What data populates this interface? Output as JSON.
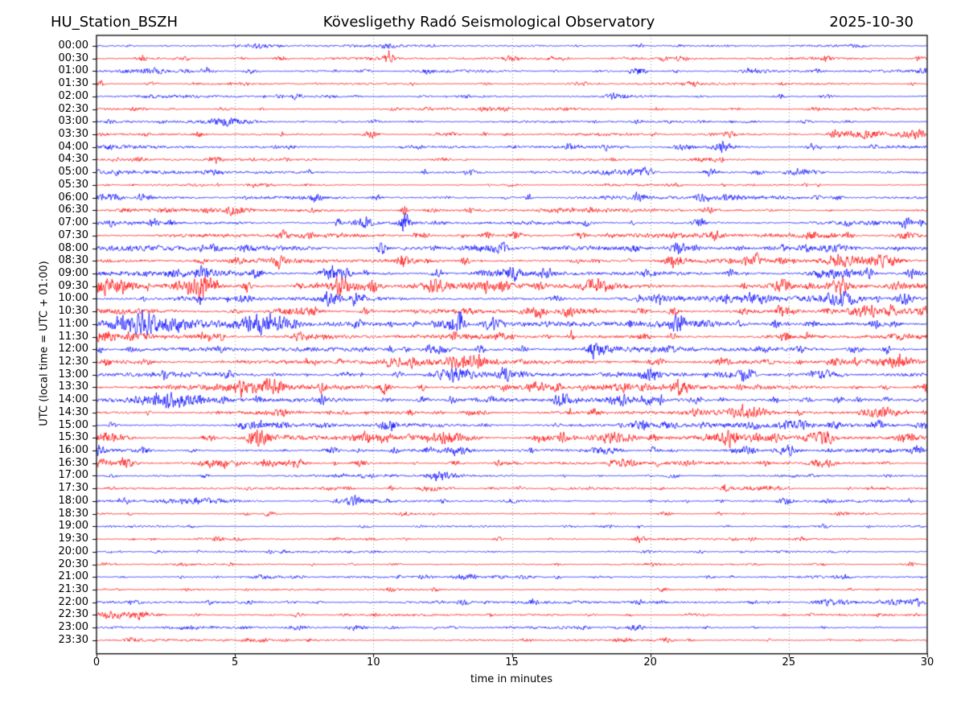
{
  "header": {
    "station": "HU_Station_BSZH",
    "observatory": "Kövesligethy Radó Seismological Observatory",
    "date": "2025-10-30"
  },
  "axes": {
    "y_label": "UTC (local time = UTC + 01:00)",
    "x_label": "time in minutes",
    "x_ticks": [
      "0",
      "5",
      "10",
      "15",
      "20",
      "25",
      "30"
    ],
    "x_range": [
      0,
      30
    ],
    "grid_minutes": [
      5,
      10,
      15,
      20,
      25
    ],
    "grid_style": "dotted"
  },
  "colors": {
    "blue": "#0000ff",
    "red": "#ff0000",
    "grid": "#999999",
    "axis": "#000000",
    "background": "#ffffff"
  },
  "chart_data": {
    "type": "line",
    "description": "24-hour helicorder dayplot, 48 half-hour traces of 30 minutes each, alternating blue/red",
    "minutes_per_row": 30,
    "rows": [
      {
        "time": "00:00",
        "color": "blue",
        "amp": 1.3,
        "events": [
          {
            "m": 5.9,
            "a": 2.2,
            "w": 0.3
          }
        ]
      },
      {
        "time": "00:30",
        "color": "red",
        "amp": 1.3,
        "events": [
          {
            "m": 10.55,
            "a": 7.0,
            "w": 0.12
          }
        ]
      },
      {
        "time": "01:00",
        "color": "blue",
        "amp": 1.5,
        "events": [
          {
            "m": 2.0,
            "a": 2.2,
            "w": 0.4
          },
          {
            "m": 23.7,
            "a": 2.5,
            "w": 0.3
          }
        ]
      },
      {
        "time": "01:30",
        "color": "red",
        "amp": 1.2,
        "events": [
          {
            "m": 0.15,
            "a": 3.0,
            "w": 0.1
          }
        ]
      },
      {
        "time": "02:00",
        "color": "blue",
        "amp": 1.2,
        "events": []
      },
      {
        "time": "02:30",
        "color": "red",
        "amp": 1.2,
        "events": []
      },
      {
        "time": "03:00",
        "color": "blue",
        "amp": 1.2,
        "events": [
          {
            "m": 4.7,
            "a": 2.6,
            "w": 0.5
          }
        ]
      },
      {
        "time": "03:30",
        "color": "red",
        "amp": 1.3,
        "events": [
          {
            "m": 27.6,
            "a": 3.5,
            "w": 0.8
          },
          {
            "m": 29.5,
            "a": 3.5,
            "w": 0.3
          }
        ]
      },
      {
        "time": "04:00",
        "color": "blue",
        "amp": 1.7,
        "events": [
          {
            "m": 21.2,
            "a": 2.8,
            "w": 0.3
          },
          {
            "m": 22.6,
            "a": 2.6,
            "w": 0.4
          }
        ]
      },
      {
        "time": "04:30",
        "color": "red",
        "amp": 1.2,
        "events": [
          {
            "m": 4.3,
            "a": 3.5,
            "w": 0.15
          }
        ]
      },
      {
        "time": "05:00",
        "color": "blue",
        "amp": 1.7,
        "events": [
          {
            "m": 19.8,
            "a": 5.0,
            "w": 0.2
          },
          {
            "m": 25.6,
            "a": 2.5,
            "w": 0.4
          }
        ]
      },
      {
        "time": "05:30",
        "color": "red",
        "amp": 1.1,
        "events": []
      },
      {
        "time": "06:00",
        "color": "blue",
        "amp": 2.0,
        "events": [
          {
            "m": 0.4,
            "a": 3.0,
            "w": 0.3
          },
          {
            "m": 19.6,
            "a": 4.0,
            "w": 0.15
          },
          {
            "m": 21.9,
            "a": 3.0,
            "w": 0.2
          }
        ]
      },
      {
        "time": "06:30",
        "color": "red",
        "amp": 1.8,
        "events": [
          {
            "m": 4.9,
            "a": 2.6,
            "w": 0.3
          },
          {
            "m": 11.1,
            "a": 4.0,
            "w": 0.1
          }
        ]
      },
      {
        "time": "07:00",
        "color": "blue",
        "amp": 2.2,
        "events": [
          {
            "m": 9.6,
            "a": 3.5,
            "w": 0.3
          },
          {
            "m": 11.15,
            "a": 8.0,
            "w": 0.15
          }
        ]
      },
      {
        "time": "07:30",
        "color": "red",
        "amp": 2.4,
        "events": [
          {
            "m": 29.3,
            "a": 3.5,
            "w": 0.3
          }
        ]
      },
      {
        "time": "08:00",
        "color": "blue",
        "amp": 2.6,
        "events": [
          {
            "m": 14.2,
            "a": 3.5,
            "w": 0.4
          },
          {
            "m": 26.6,
            "a": 3.5,
            "w": 0.5
          }
        ]
      },
      {
        "time": "08:30",
        "color": "red",
        "amp": 2.6,
        "events": [
          {
            "m": 20.9,
            "a": 4.0,
            "w": 0.3
          },
          {
            "m": 26.9,
            "a": 4.5,
            "w": 0.5
          },
          {
            "m": 28.4,
            "a": 4.5,
            "w": 0.4
          }
        ]
      },
      {
        "time": "09:00",
        "color": "blue",
        "amp": 2.8,
        "events": [
          {
            "m": 8.9,
            "a": 4.5,
            "w": 0.2
          },
          {
            "m": 14.9,
            "a": 4.0,
            "w": 0.3
          },
          {
            "m": 27.2,
            "a": 3.5,
            "w": 0.4
          }
        ]
      },
      {
        "time": "09:30",
        "color": "red",
        "amp": 3.0,
        "events": [
          {
            "m": 0.3,
            "a": 6.5,
            "w": 0.3
          },
          {
            "m": 1.0,
            "a": 5.5,
            "w": 0.3
          },
          {
            "m": 3.6,
            "a": 6.5,
            "w": 0.5
          },
          {
            "m": 8.9,
            "a": 5.5,
            "w": 0.4
          },
          {
            "m": 12.2,
            "a": 5.5,
            "w": 0.3
          },
          {
            "m": 18.0,
            "a": 5.5,
            "w": 0.4
          },
          {
            "m": 26.9,
            "a": 4.5,
            "w": 0.3
          }
        ]
      },
      {
        "time": "10:00",
        "color": "blue",
        "amp": 2.8,
        "events": [
          {
            "m": 26.9,
            "a": 5.5,
            "w": 0.5
          },
          {
            "m": 29.2,
            "a": 3.5,
            "w": 0.3
          }
        ]
      },
      {
        "time": "10:30",
        "color": "red",
        "amp": 2.8,
        "events": [
          {
            "m": 7.5,
            "a": 3.5,
            "w": 0.4
          },
          {
            "m": 15.8,
            "a": 3.5,
            "w": 0.3
          },
          {
            "m": 27.8,
            "a": 4.0,
            "w": 0.4
          }
        ]
      },
      {
        "time": "11:00",
        "color": "blue",
        "amp": 3.0,
        "events": [
          {
            "m": 1.2,
            "a": 6.5,
            "w": 0.6
          },
          {
            "m": 2.3,
            "a": 7.5,
            "w": 0.8
          },
          {
            "m": 5.6,
            "a": 5.5,
            "w": 0.4
          },
          {
            "m": 6.6,
            "a": 6.5,
            "w": 0.5
          },
          {
            "m": 12.9,
            "a": 5.5,
            "w": 0.3
          },
          {
            "m": 14.3,
            "a": 5.5,
            "w": 0.25
          },
          {
            "m": 21.0,
            "a": 6.5,
            "w": 0.2
          }
        ]
      },
      {
        "time": "11:30",
        "color": "red",
        "amp": 2.7,
        "events": [
          {
            "m": 0.3,
            "a": 4.5,
            "w": 0.3
          },
          {
            "m": 4.0,
            "a": 3.5,
            "w": 0.3
          }
        ]
      },
      {
        "time": "12:00",
        "color": "blue",
        "amp": 2.5,
        "events": [
          {
            "m": 12.2,
            "a": 4.5,
            "w": 0.25
          },
          {
            "m": 18.1,
            "a": 4.5,
            "w": 0.3
          }
        ]
      },
      {
        "time": "12:30",
        "color": "red",
        "amp": 2.7,
        "events": [
          {
            "m": 13.5,
            "a": 3.5,
            "w": 0.4
          },
          {
            "m": 29.0,
            "a": 3.5,
            "w": 0.4
          }
        ]
      },
      {
        "time": "13:00",
        "color": "blue",
        "amp": 2.7,
        "events": [
          {
            "m": 12.9,
            "a": 6.5,
            "w": 0.5
          },
          {
            "m": 26.3,
            "a": 3.5,
            "w": 0.4
          }
        ]
      },
      {
        "time": "13:30",
        "color": "red",
        "amp": 2.8,
        "events": [
          {
            "m": 5.3,
            "a": 4.5,
            "w": 0.5
          },
          {
            "m": 6.4,
            "a": 4.5,
            "w": 0.4
          },
          {
            "m": 15.9,
            "a": 3.5,
            "w": 0.3
          },
          {
            "m": 21.1,
            "a": 5.5,
            "w": 0.2
          }
        ]
      },
      {
        "time": "14:00",
        "color": "blue",
        "amp": 2.7,
        "events": [
          {
            "m": 2.6,
            "a": 4.5,
            "w": 0.8
          },
          {
            "m": 16.9,
            "a": 3.5,
            "w": 0.3
          }
        ]
      },
      {
        "time": "14:30",
        "color": "red",
        "amp": 2.3,
        "events": [
          {
            "m": 23.6,
            "a": 3.5,
            "w": 0.5
          },
          {
            "m": 28.4,
            "a": 4.5,
            "w": 0.4
          }
        ]
      },
      {
        "time": "15:00",
        "color": "blue",
        "amp": 2.2,
        "events": [
          {
            "m": 5.3,
            "a": 3.5,
            "w": 0.15
          },
          {
            "m": 6.0,
            "a": 3.5,
            "w": 0.15
          },
          {
            "m": 19.6,
            "a": 3.5,
            "w": 0.3
          },
          {
            "m": 25.3,
            "a": 4.0,
            "w": 0.4
          },
          {
            "m": 29.9,
            "a": 4.5,
            "w": 0.2
          }
        ]
      },
      {
        "time": "15:30",
        "color": "red",
        "amp": 2.5,
        "events": [
          {
            "m": 0.3,
            "a": 4.5,
            "w": 0.3
          },
          {
            "m": 5.9,
            "a": 4.5,
            "w": 0.3
          },
          {
            "m": 9.8,
            "a": 4.5,
            "w": 0.4
          },
          {
            "m": 12.6,
            "a": 4.5,
            "w": 0.6
          },
          {
            "m": 16.1,
            "a": 3.5,
            "w": 0.3
          },
          {
            "m": 18.7,
            "a": 4.5,
            "w": 0.4
          },
          {
            "m": 22.5,
            "a": 3.5,
            "w": 0.4
          },
          {
            "m": 26.1,
            "a": 4.5,
            "w": 0.4
          },
          {
            "m": 29.3,
            "a": 3.5,
            "w": 0.3
          }
        ]
      },
      {
        "time": "16:00",
        "color": "blue",
        "amp": 1.9,
        "events": [
          {
            "m": 13.0,
            "a": 3.5,
            "w": 0.3
          },
          {
            "m": 18.4,
            "a": 3.5,
            "w": 0.4
          },
          {
            "m": 23.4,
            "a": 4.5,
            "w": 0.3
          },
          {
            "m": 24.9,
            "a": 3.5,
            "w": 0.3
          },
          {
            "m": 29.7,
            "a": 3.5,
            "w": 0.2
          }
        ]
      },
      {
        "time": "16:30",
        "color": "red",
        "amp": 1.8,
        "events": [
          {
            "m": 0.2,
            "a": 4.5,
            "w": 0.2
          },
          {
            "m": 4.1,
            "a": 2.6,
            "w": 0.3
          },
          {
            "m": 7.2,
            "a": 3.5,
            "w": 0.3
          },
          {
            "m": 19.1,
            "a": 3.0,
            "w": 0.3
          },
          {
            "m": 26.2,
            "a": 4.5,
            "w": 0.3
          }
        ]
      },
      {
        "time": "17:00",
        "color": "blue",
        "amp": 1.3,
        "events": [
          {
            "m": 12.3,
            "a": 2.6,
            "w": 0.3
          }
        ]
      },
      {
        "time": "17:30",
        "color": "red",
        "amp": 1.3,
        "events": [
          {
            "m": 12.1,
            "a": 2.2,
            "w": 0.3
          },
          {
            "m": 24.3,
            "a": 3.0,
            "w": 0.3
          }
        ]
      },
      {
        "time": "18:00",
        "color": "blue",
        "amp": 1.4,
        "events": [
          {
            "m": 3.5,
            "a": 2.6,
            "w": 1.0
          },
          {
            "m": 9.3,
            "a": 3.0,
            "w": 0.3
          },
          {
            "m": 24.9,
            "a": 2.6,
            "w": 0.2
          }
        ]
      },
      {
        "time": "18:30",
        "color": "red",
        "amp": 1.0,
        "events": []
      },
      {
        "time": "19:00",
        "color": "blue",
        "amp": 1.0,
        "events": []
      },
      {
        "time": "19:30",
        "color": "red",
        "amp": 1.1,
        "events": [
          {
            "m": 4.4,
            "a": 2.2,
            "w": 0.15
          },
          {
            "m": 19.6,
            "a": 2.6,
            "w": 0.15
          }
        ]
      },
      {
        "time": "20:00",
        "color": "blue",
        "amp": 1.0,
        "events": []
      },
      {
        "time": "20:30",
        "color": "red",
        "amp": 1.0,
        "events": [
          {
            "m": 29.4,
            "a": 2.2,
            "w": 0.15
          }
        ]
      },
      {
        "time": "21:00",
        "color": "blue",
        "amp": 1.1,
        "events": [
          {
            "m": 6.0,
            "a": 2.2,
            "w": 0.3
          },
          {
            "m": 13.2,
            "a": 1.8,
            "w": 0.2
          },
          {
            "m": 15.6,
            "a": 1.8,
            "w": 0.2
          }
        ]
      },
      {
        "time": "21:30",
        "color": "red",
        "amp": 0.9,
        "events": []
      },
      {
        "time": "22:00",
        "color": "blue",
        "amp": 1.4,
        "events": [
          {
            "m": 26.6,
            "a": 2.6,
            "w": 0.5
          },
          {
            "m": 28.9,
            "a": 2.6,
            "w": 0.5
          },
          {
            "m": 29.7,
            "a": 2.6,
            "w": 0.2
          }
        ]
      },
      {
        "time": "22:30",
        "color": "red",
        "amp": 1.1,
        "events": [
          {
            "m": 0.5,
            "a": 2.6,
            "w": 0.4
          },
          {
            "m": 1.6,
            "a": 3.2,
            "w": 0.4
          }
        ]
      },
      {
        "time": "23:00",
        "color": "blue",
        "amp": 1.1,
        "events": [
          {
            "m": 7.3,
            "a": 2.2,
            "w": 0.3
          },
          {
            "m": 9.4,
            "a": 2.6,
            "w": 0.25
          },
          {
            "m": 19.5,
            "a": 3.0,
            "w": 0.2
          }
        ]
      },
      {
        "time": "23:30",
        "color": "red",
        "amp": 1.1,
        "events": [
          {
            "m": 20.5,
            "a": 2.2,
            "w": 0.2
          }
        ]
      }
    ]
  }
}
